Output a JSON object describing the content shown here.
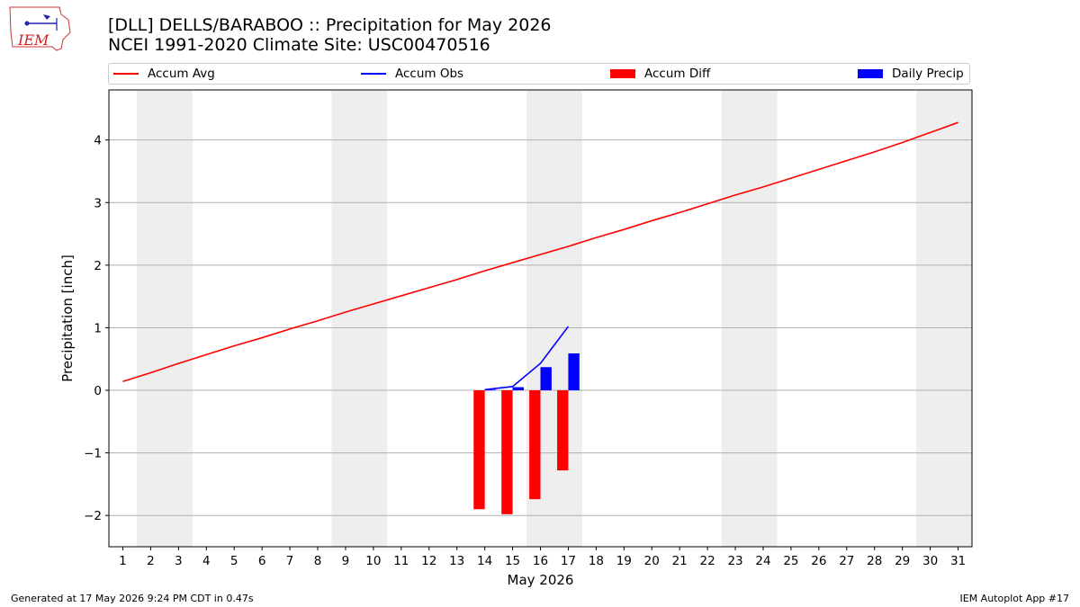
{
  "header": {
    "logo_text": "IEM",
    "title_line1": "[DLL] DELLS/BARABOO :: Precipitation for May 2026",
    "title_line2": "NCEI 1991-2020 Climate Site: USC00470516"
  },
  "legend": {
    "accum_avg": "Accum Avg",
    "accum_obs": "Accum Obs",
    "accum_diff": "Accum Diff",
    "daily_precip": "Daily Precip"
  },
  "colors": {
    "accum_avg": "#ff0000",
    "accum_obs": "#0000ff",
    "accum_diff": "#ff0000",
    "daily_precip": "#0000ff",
    "weekend_band": "#eeeeee",
    "grid": "#b0b0b0"
  },
  "footer": {
    "generated": "Generated at 17 May 2026 9:24 PM CDT in 0.47s",
    "app": "IEM Autoplot App #17"
  },
  "chart_data": {
    "type": "bar",
    "xlabel": "May 2026",
    "ylabel": "Precipitation [inch]",
    "xlim": [
      0.5,
      31.5
    ],
    "ylim": [
      -2.5,
      4.8
    ],
    "x_ticks": [
      1,
      2,
      3,
      4,
      5,
      6,
      7,
      8,
      9,
      10,
      11,
      12,
      13,
      14,
      15,
      16,
      17,
      18,
      19,
      20,
      21,
      22,
      23,
      24,
      25,
      26,
      27,
      28,
      29,
      30,
      31
    ],
    "y_ticks": [
      -2,
      -1,
      0,
      1,
      2,
      3,
      4
    ],
    "y_tick_labels": [
      "−2",
      "−1",
      "0",
      "1",
      "2",
      "3",
      "4"
    ],
    "grid": "y",
    "legend_placement": "top",
    "weekend_bands": [
      [
        2,
        3
      ],
      [
        9,
        10
      ],
      [
        16,
        17
      ],
      [
        23,
        24
      ],
      [
        30,
        31
      ]
    ],
    "series": [
      {
        "name": "Accum Avg",
        "type": "line",
        "x": [
          1,
          2,
          3,
          4,
          5,
          6,
          7,
          8,
          9,
          10,
          11,
          12,
          13,
          14,
          15,
          16,
          17,
          18,
          19,
          20,
          21,
          22,
          23,
          24,
          25,
          26,
          27,
          28,
          29,
          30,
          31
        ],
        "values": [
          0.14,
          0.28,
          0.43,
          0.57,
          0.71,
          0.84,
          0.98,
          1.11,
          1.25,
          1.38,
          1.51,
          1.64,
          1.77,
          1.91,
          2.04,
          2.17,
          2.3,
          2.44,
          2.57,
          2.71,
          2.84,
          2.98,
          3.12,
          3.25,
          3.39,
          3.53,
          3.67,
          3.81,
          3.96,
          4.12,
          4.28
        ]
      },
      {
        "name": "Accum Obs",
        "type": "line",
        "x": [
          14,
          15,
          16,
          17
        ],
        "values": [
          0.01,
          0.06,
          0.43,
          1.02
        ]
      },
      {
        "name": "Accum Diff",
        "type": "bar",
        "x": [
          14,
          15,
          16,
          17
        ],
        "values": [
          -1.9,
          -1.98,
          -1.74,
          -1.28
        ]
      },
      {
        "name": "Daily Precip",
        "type": "bar",
        "x": [
          14,
          15,
          16,
          17
        ],
        "values": [
          0.01,
          0.05,
          0.37,
          0.59
        ]
      }
    ]
  }
}
